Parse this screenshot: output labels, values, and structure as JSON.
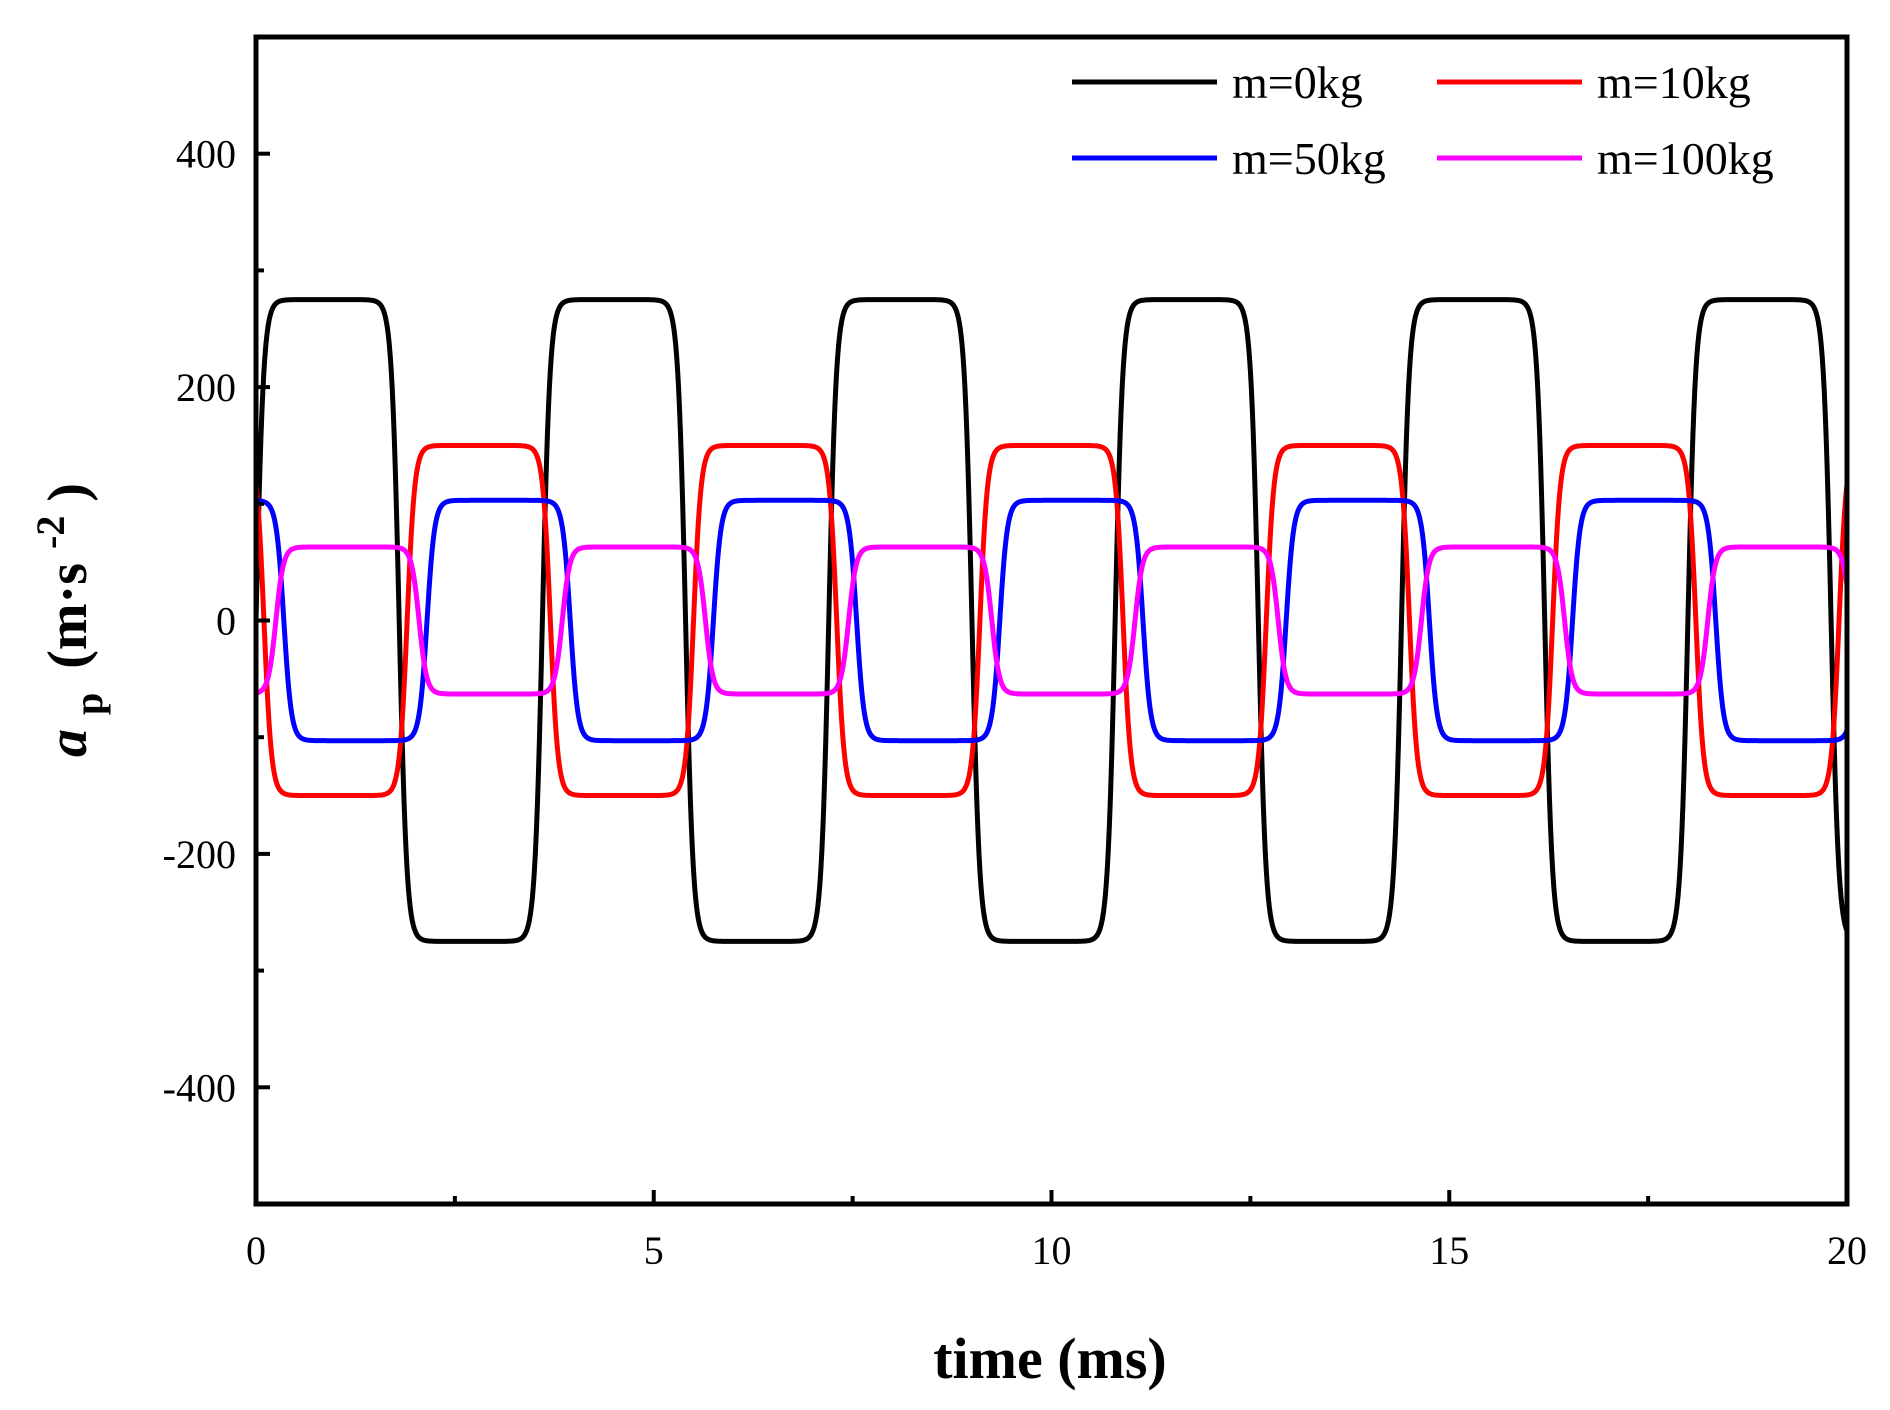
{
  "chart_data": {
    "type": "line",
    "title": "",
    "xlabel": "time (ms)",
    "ylabel": {
      "symbol": "a",
      "subscript": "p",
      "unit_open": "(m·s",
      "unit_exponent": "-2",
      "unit_close": ")"
    },
    "xlim": [
      0,
      20
    ],
    "ylim": [
      -500,
      500
    ],
    "x_ticks": [
      0,
      5,
      10,
      15,
      20
    ],
    "x_tick_labels": [
      "0",
      "5",
      "10",
      "15",
      "20"
    ],
    "x_minor_ticks": [
      2.5,
      7.5,
      12.5,
      17.5
    ],
    "y_ticks": [
      -400,
      -200,
      0,
      200,
      400
    ],
    "y_tick_labels": [
      "-400",
      "-200",
      "0",
      "200",
      "400"
    ],
    "y_minor_ticks": [
      -300,
      -100,
      100,
      300
    ],
    "grid": false,
    "legend_position": "top-right",
    "period_ms": 3.6,
    "series": [
      {
        "name": "m=0kg",
        "color": "#000000",
        "amplitude": 275,
        "phase_ms": 0.0,
        "sharpness": 6.0
      },
      {
        "name": "m=10kg",
        "color": "#ff0000",
        "amplitude": 150,
        "phase_ms": 1.9,
        "sharpness": 6.0
      },
      {
        "name": "m=50kg",
        "color": "#0000ff",
        "amplitude": 103,
        "phase_ms": 2.15,
        "sharpness": 6.0
      },
      {
        "name": "m=100kg",
        "color": "#ff00ff",
        "amplitude": 63,
        "phase_ms": 0.25,
        "sharpness": 6.0
      }
    ]
  }
}
